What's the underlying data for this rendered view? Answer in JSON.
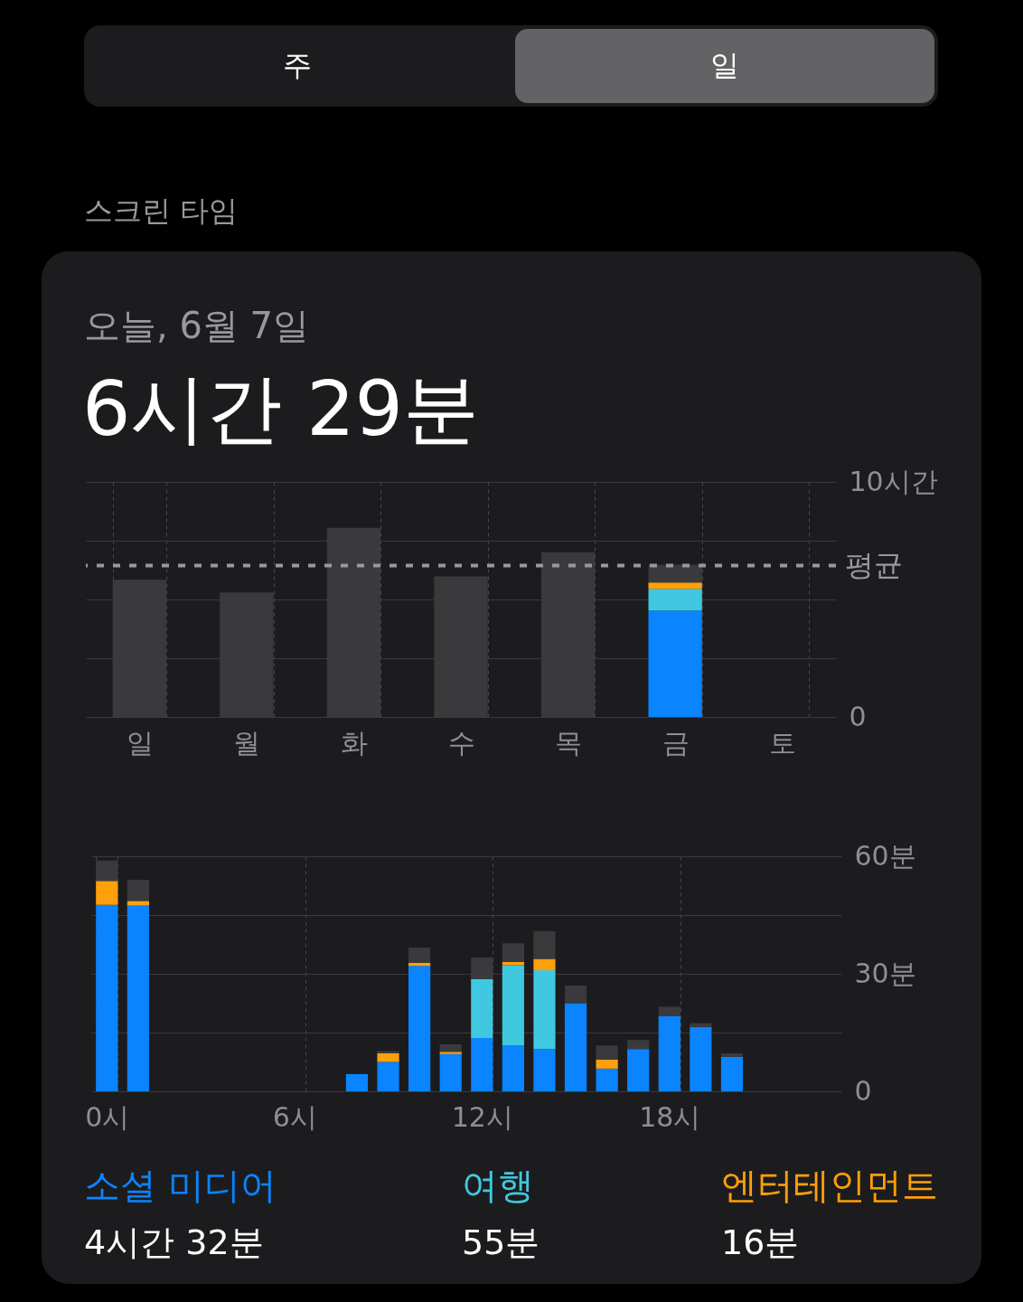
{
  "chart_data": [
    {
      "type": "bar",
      "title": "6시간 29분",
      "subtitle": "오늘, 6월 7일",
      "annotations": [
        "주",
        "일",
        "스크린 타임"
      ],
      "categories": [
        "일",
        "월",
        "화",
        "수",
        "목",
        "금",
        "토"
      ],
      "stacked": true,
      "series": [
        {
          "color": "#0a84ff",
          "values": [
            null,
            null,
            null,
            null,
            null,
            4.53,
            null
          ]
        },
        {
          "color": "#40c8e0",
          "values": [
            null,
            null,
            null,
            null,
            null,
            0.92,
            null
          ]
        },
        {
          "color": "#ff9f0a",
          "values": [
            null,
            null,
            null,
            null,
            null,
            0.27,
            null
          ]
        },
        {
          "color": "#3a3a3c",
          "values": [
            5.84,
            5.3,
            8.05,
            5.98,
            7.01,
            0.76,
            null
          ]
        }
      ],
      "ylim": [
        0,
        10
      ],
      "yticks": [
        {
          "value": 0,
          "label": "0"
        },
        {
          "value": 2.5,
          "label": null
        },
        {
          "value": 5,
          "label": null
        },
        {
          "value": 7.5,
          "label": null
        },
        {
          "value": 10,
          "label": "10시간"
        }
      ],
      "ref_lines": [
        {
          "axis": "y",
          "value": 6.44,
          "label": "평균",
          "color": "#98989d",
          "line_style": "dashed"
        }
      ],
      "grid": true
    },
    {
      "type": "bar",
      "categories": [
        "0시",
        null,
        null,
        null,
        null,
        null,
        "6시",
        null,
        null,
        null,
        null,
        null,
        "12시",
        null,
        null,
        null,
        null,
        null,
        "18시",
        null,
        null,
        null,
        null,
        null
      ],
      "stacked": true,
      "series": [
        {
          "name": "소셜 미디어",
          "color": "#0a84ff",
          "values": [
            47.6,
            47.4,
            null,
            null,
            null,
            null,
            null,
            null,
            4.4,
            7.5,
            32,
            9.5,
            13.6,
            11.7,
            10.8,
            22.5,
            5.8,
            10.8,
            19.2,
            16.4,
            8.8,
            null,
            null,
            null
          ]
        },
        {
          "name": "여행",
          "color": "#40c8e0",
          "values": [
            null,
            null,
            null,
            null,
            null,
            null,
            null,
            null,
            null,
            null,
            null,
            null,
            15.1,
            20.5,
            20.1,
            null,
            null,
            null,
            null,
            null,
            null,
            null,
            null,
            null
          ]
        },
        {
          "name": "엔터테인먼트",
          "color": "#ff9f0a",
          "values": [
            6.1,
            1.2,
            null,
            null,
            null,
            null,
            null,
            null,
            null,
            2.2,
            0.8,
            0.6,
            null,
            0.8,
            2.9,
            null,
            2.3,
            null,
            null,
            null,
            null,
            null,
            null,
            null
          ]
        },
        {
          "color": "#3a3a3c",
          "values": [
            5.2,
            5.4,
            null,
            null,
            null,
            null,
            null,
            null,
            null,
            0.6,
            3.9,
            1.9,
            5.5,
            4.8,
            7.1,
            4.5,
            3.6,
            2.3,
            2.4,
            1.0,
            0.9,
            null,
            null,
            null
          ]
        }
      ],
      "ylim": [
        0,
        60
      ],
      "yticks": [
        {
          "value": 0,
          "label": "0"
        },
        {
          "value": 15,
          "label": null
        },
        {
          "value": 30,
          "label": "30분"
        },
        {
          "value": 45,
          "label": null
        },
        {
          "value": 60,
          "label": "60분"
        }
      ],
      "grid": true,
      "legend": "bottom",
      "annotations": [
        "4시간 32분",
        "55분",
        "16분"
      ]
    }
  ]
}
